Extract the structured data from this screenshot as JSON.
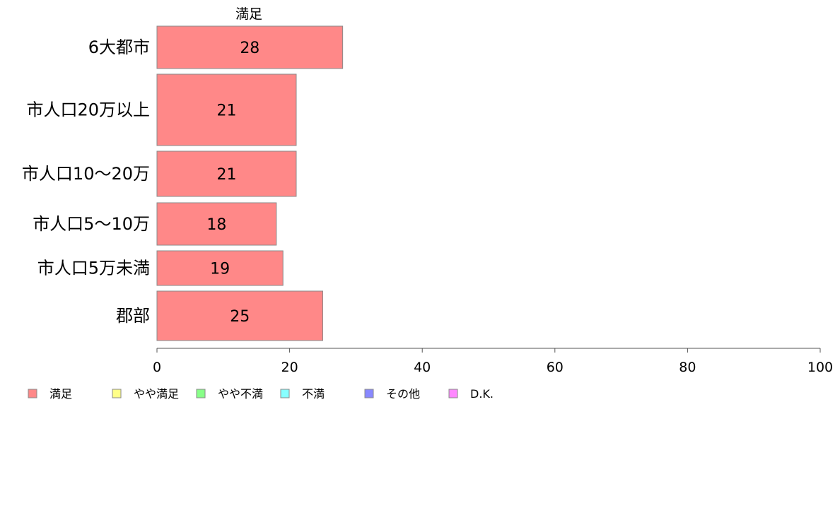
{
  "chart_data": {
    "type": "bar",
    "orientation": "horizontal",
    "stacked": true,
    "categories": [
      "6大都市",
      "市人口20万以上",
      "市人口10～20万",
      "市人口5～10万",
      "市人口5万未満",
      "郡部"
    ],
    "series": [
      {
        "name": "満足",
        "color": "#ff8888",
        "values": [
          28,
          21,
          21,
          18,
          19,
          25
        ]
      },
      {
        "name": "やや満足",
        "color": "#ffff88",
        "values": [
          null,
          null,
          null,
          null,
          null,
          null
        ]
      },
      {
        "name": "やや不満",
        "color": "#88ff88",
        "values": [
          null,
          null,
          null,
          null,
          null,
          null
        ]
      },
      {
        "name": "不満",
        "color": "#88ffff",
        "values": [
          null,
          null,
          null,
          null,
          null,
          null
        ]
      },
      {
        "name": "その他",
        "color": "#8888ff",
        "values": [
          null,
          null,
          null,
          null,
          null,
          null
        ]
      },
      {
        "name": "D.K.",
        "color": "#ff88ff",
        "values": [
          null,
          null,
          null,
          null,
          null,
          null
        ]
      }
    ],
    "xlim": [
      0,
      100
    ],
    "xticks": [
      0,
      20,
      40,
      60,
      80,
      100
    ],
    "visible_series_label": "満足",
    "legend_position": "bottom-left",
    "grid": false
  }
}
